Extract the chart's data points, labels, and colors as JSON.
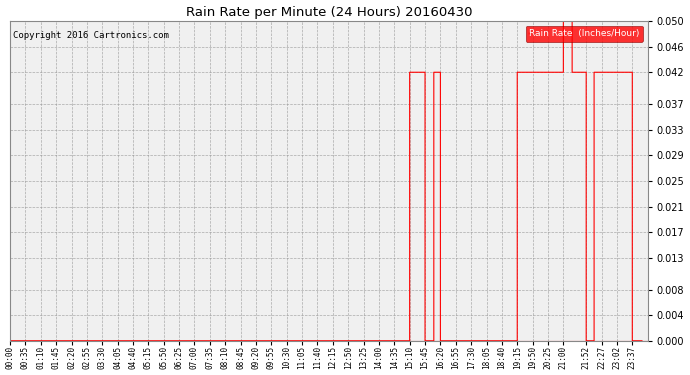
{
  "title": "Rain Rate per Minute (24 Hours) 20160430",
  "copyright": "Copyright 2016 Cartronics.com",
  "legend_label": "Rain Rate  (Inches/Hour)",
  "ylim": [
    0.0,
    0.05
  ],
  "yticks": [
    0.0,
    0.004,
    0.008,
    0.013,
    0.017,
    0.021,
    0.025,
    0.029,
    0.033,
    0.037,
    0.042,
    0.046,
    0.05
  ],
  "line_color": "#ff0000",
  "bg_color": "#ffffff",
  "plot_bg_color": "#f0f0f0",
  "grid_color": "#999999",
  "title_fontsize": 10,
  "x_labels": [
    "00:00",
    "00:35",
    "01:10",
    "01:45",
    "02:20",
    "02:55",
    "03:30",
    "04:05",
    "04:40",
    "05:15",
    "05:50",
    "06:25",
    "07:00",
    "07:35",
    "08:10",
    "08:45",
    "09:20",
    "09:55",
    "10:30",
    "11:05",
    "11:40",
    "12:15",
    "12:50",
    "13:25",
    "14:00",
    "14:35",
    "15:10",
    "15:45",
    "16:20",
    "16:55",
    "17:30",
    "18:05",
    "18:40",
    "19:15",
    "19:50",
    "20:25",
    "21:00",
    "21:52",
    "22:27",
    "23:02",
    "23:37"
  ],
  "segments": [
    {
      "t_start": "15:10",
      "t_end": "15:45",
      "value": 0.042
    },
    {
      "t_start": "15:45",
      "t_end": "16:05",
      "value": 0.0
    },
    {
      "t_start": "16:05",
      "t_end": "16:20",
      "value": 0.042
    },
    {
      "t_start": "19:15",
      "t_end": "19:50",
      "value": 0.042
    },
    {
      "t_start": "19:50",
      "t_end": "20:10",
      "value": 0.042
    },
    {
      "t_start": "20:10",
      "t_end": "20:25",
      "value": 0.042
    },
    {
      "t_start": "20:25",
      "t_end": "20:40",
      "value": 0.042
    },
    {
      "t_start": "20:40",
      "t_end": "21:00",
      "value": 0.042
    },
    {
      "t_start": "21:00",
      "t_end": "21:20",
      "value": 0.05
    },
    {
      "t_start": "21:20",
      "t_end": "21:52",
      "value": 0.042
    },
    {
      "t_start": "21:52",
      "t_end": "22:10",
      "value": 0.0
    },
    {
      "t_start": "22:10",
      "t_end": "22:27",
      "value": 0.042
    },
    {
      "t_start": "22:27",
      "t_end": "22:50",
      "value": 0.042
    },
    {
      "t_start": "22:50",
      "t_end": "23:02",
      "value": 0.042
    },
    {
      "t_start": "23:02",
      "t_end": "23:20",
      "value": 0.042
    },
    {
      "t_start": "23:20",
      "t_end": "23:37",
      "value": 0.042
    }
  ]
}
